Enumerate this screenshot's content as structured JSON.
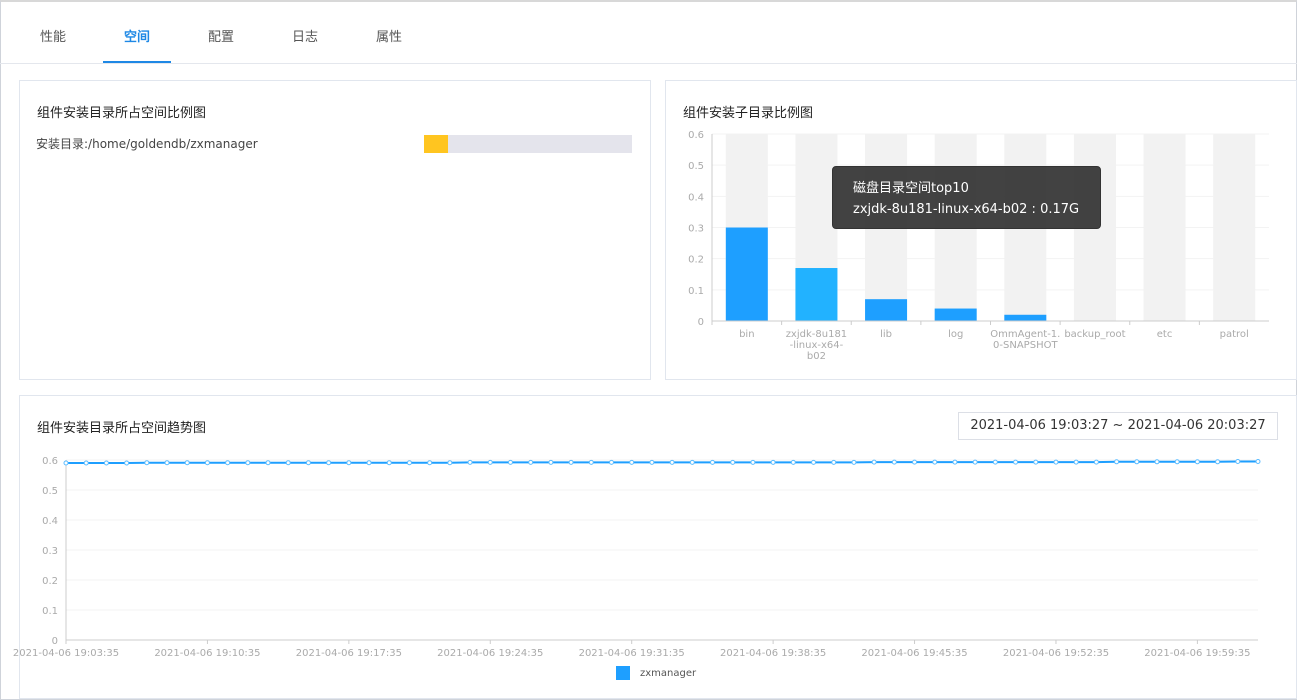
{
  "tabs": [
    {
      "label": "性能"
    },
    {
      "label": "空间",
      "active": true
    },
    {
      "label": "配置"
    },
    {
      "label": "日志"
    },
    {
      "label": "属性"
    }
  ],
  "install_panel": {
    "title": "组件安装目录所占空间比例图",
    "dir_label": "安装目录:/home/goldendb/zxmanager",
    "usage_percent": 11.5,
    "fill_color": "#ffc520"
  },
  "subdir_panel": {
    "title": "组件安装子目录比例图",
    "tooltip": {
      "title": "磁盘目录空间top10",
      "line": "zxjdk-8u181-linux-x64-b02 : 0.17G"
    }
  },
  "trend_panel": {
    "title": "组件安装目录所占空间趋势图",
    "time_range": "2021-04-06 19:03:27 ~ 2021-04-06 20:03:27"
  },
  "chart_data": [
    {
      "type": "bar",
      "title": "组件安装子目录比例图",
      "categories": [
        "bin",
        "zxjdk-8u181-linux-x64-b02",
        "lib",
        "log",
        "OmmAgent-1.0-SNAPSHOT",
        "backup_root",
        "etc",
        "patrol"
      ],
      "category_labels": [
        [
          "bin"
        ],
        [
          "zxjdk-8u181",
          "-linux-x64-",
          "b02"
        ],
        [
          "lib"
        ],
        [
          "log"
        ],
        [
          "OmmAgent-1.",
          "0-SNAPSHOT"
        ],
        [
          "backup_root"
        ],
        [
          "etc"
        ],
        [
          "patrol"
        ]
      ],
      "values": [
        0.3,
        0.17,
        0.07,
        0.04,
        0.02,
        0,
        0,
        0
      ],
      "highlighted": "zxjdk-8u181-linux-x64-b02",
      "ylim": [
        0,
        0.6
      ],
      "yticks": [
        "0",
        "0.1",
        "0.2",
        "0.3",
        "0.4",
        "0.5",
        "0.6"
      ],
      "colors": {
        "bar": "#1e9fff",
        "highlight": "#22b2ff",
        "band": "#f2f2f2"
      }
    },
    {
      "type": "line",
      "title": "组件安装目录所占空间趋势图",
      "ylim": [
        0,
        0.6
      ],
      "yticks": [
        "0",
        "0.1",
        "0.2",
        "0.3",
        "0.4",
        "0.5",
        "0.6"
      ],
      "xticks": [
        "2021-04-06 19:03:35",
        "2021-04-06 19:10:35",
        "2021-04-06 19:17:35",
        "2021-04-06 19:24:35",
        "2021-04-06 19:31:35",
        "2021-04-06 19:38:35",
        "2021-04-06 19:45:35",
        "2021-04-06 19:52:35",
        "2021-04-06 19:59:35"
      ],
      "x_start": "2021-04-06 19:03:35",
      "x_interval_minutes": 1,
      "series": [
        {
          "name": "zxmanager",
          "color": "#1e9fff",
          "values": [
            0.59,
            0.59,
            0.59,
            0.59,
            0.591,
            0.591,
            0.591,
            0.591,
            0.591,
            0.591,
            0.591,
            0.591,
            0.591,
            0.591,
            0.591,
            0.591,
            0.591,
            0.591,
            0.591,
            0.591,
            0.592,
            0.592,
            0.592,
            0.592,
            0.592,
            0.592,
            0.592,
            0.592,
            0.592,
            0.592,
            0.592,
            0.592,
            0.592,
            0.592,
            0.592,
            0.592,
            0.592,
            0.592,
            0.592,
            0.592,
            0.593,
            0.593,
            0.593,
            0.593,
            0.593,
            0.593,
            0.593,
            0.593,
            0.593,
            0.593,
            0.593,
            0.593,
            0.594,
            0.594,
            0.594,
            0.594,
            0.594,
            0.594,
            0.595,
            0.595
          ]
        }
      ],
      "legend": "bottom"
    }
  ]
}
